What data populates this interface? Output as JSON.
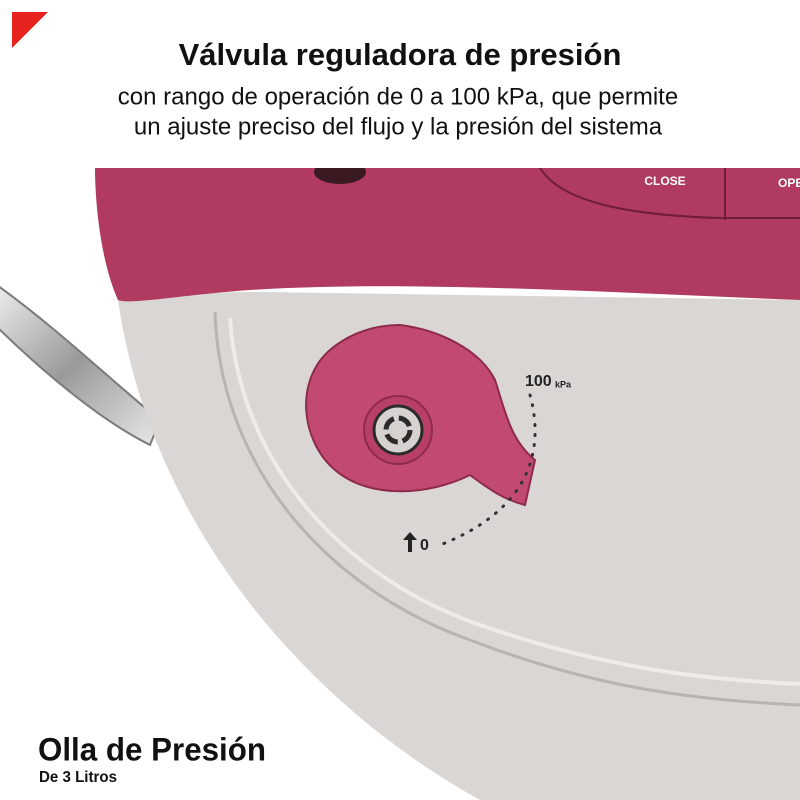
{
  "header": {
    "title": "Válvula reguladora de presión",
    "subtitle": [
      "con rango de operación de 0 a 100 kPa, que permite",
      "un ajuste preciso del flujo y la presión del sistema"
    ]
  },
  "image_labels": {
    "close": "CLOSE",
    "open": "OPE",
    "max_value": "100",
    "max_unit": "kPa",
    "min_value": "0"
  },
  "footer": {
    "title": "Olla de Presión",
    "subtitle": "De 3 Litros"
  }
}
